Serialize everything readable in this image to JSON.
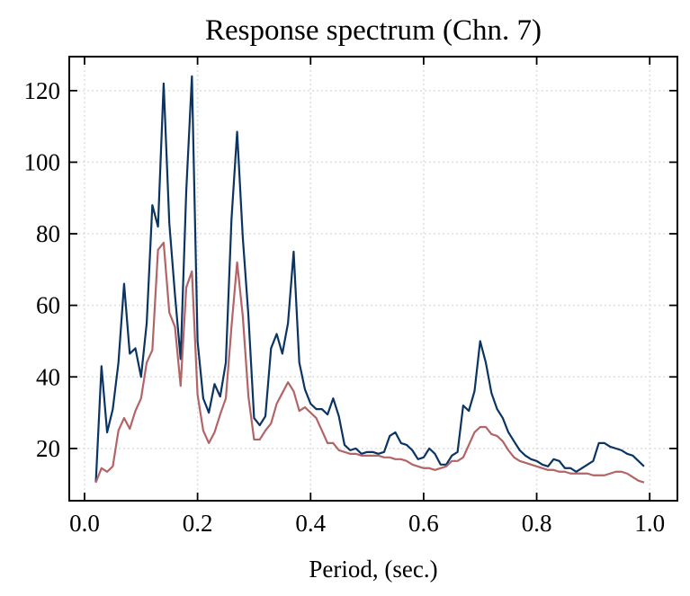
{
  "chart_data": {
    "type": "line",
    "title": "Response spectrum (Chn. 7)",
    "x_label": "Period, (sec.)",
    "x": [
      0.02,
      0.03,
      0.04,
      0.05,
      0.06,
      0.07,
      0.08,
      0.09,
      0.1,
      0.11,
      0.12,
      0.13,
      0.14,
      0.15,
      0.16,
      0.17,
      0.18,
      0.19,
      0.2,
      0.21,
      0.22,
      0.23,
      0.24,
      0.25,
      0.26,
      0.27,
      0.28,
      0.29,
      0.3,
      0.31,
      0.32,
      0.33,
      0.34,
      0.35,
      0.36,
      0.37,
      0.38,
      0.39,
      0.4,
      0.41,
      0.42,
      0.43,
      0.44,
      0.45,
      0.46,
      0.47,
      0.48,
      0.49,
      0.5,
      0.51,
      0.52,
      0.53,
      0.54,
      0.55,
      0.56,
      0.57,
      0.58,
      0.59,
      0.6,
      0.61,
      0.62,
      0.63,
      0.64,
      0.65,
      0.66,
      0.67,
      0.68,
      0.69,
      0.7,
      0.71,
      0.72,
      0.73,
      0.74,
      0.75,
      0.76,
      0.77,
      0.78,
      0.79,
      0.8,
      0.81,
      0.82,
      0.83,
      0.84,
      0.85,
      0.86,
      0.87,
      0.88,
      0.89,
      0.9,
      0.91,
      0.92,
      0.93,
      0.94,
      0.95,
      0.96,
      0.97,
      0.98,
      0.99
    ],
    "series": [
      {
        "color": "#0b3462",
        "values": [
          10.5,
          43,
          24.5,
          31,
          44,
          66,
          46.5,
          48,
          40,
          55,
          88,
          82,
          122,
          83,
          63,
          45,
          92,
          124,
          50,
          34,
          30,
          38,
          34.5,
          44,
          84,
          108.5,
          79,
          57,
          28.5,
          26.5,
          29,
          48,
          52,
          46.5,
          55,
          75,
          44,
          36.5,
          32.5,
          31,
          31,
          29.5,
          34,
          29,
          21,
          19.5,
          20,
          18.5,
          19,
          19,
          18.5,
          19,
          23.5,
          24.5,
          21.5,
          21,
          19.5,
          17,
          17.5,
          20,
          18.5,
          15.5,
          15.5,
          18,
          19,
          32,
          30.5,
          36,
          50,
          44,
          35.5,
          31,
          28.5,
          24.5,
          22,
          19.5,
          18,
          17,
          16.5,
          15.5,
          15,
          17,
          16.5,
          14.5,
          14.5,
          13.5,
          14.5,
          15.5,
          16.5,
          21.5,
          21.5,
          20.5,
          20,
          19.5,
          18.5,
          18,
          16.5,
          15
        ]
      },
      {
        "color": "#b36466",
        "values": [
          10.5,
          14.5,
          13.5,
          15,
          25,
          28.5,
          25.5,
          30.5,
          34,
          44,
          47.5,
          75.5,
          77.5,
          58,
          54,
          37.5,
          65,
          69.5,
          35,
          25,
          21.5,
          24.5,
          29.5,
          34,
          54,
          72,
          57,
          34.5,
          22.5,
          22.5,
          25,
          27,
          32.5,
          35.5,
          38.5,
          36,
          30.5,
          31.5,
          30,
          28.5,
          25,
          21.5,
          21.5,
          19.5,
          19,
          18.5,
          18.5,
          18,
          18,
          18,
          18,
          17.5,
          17.5,
          17,
          17,
          16.5,
          15.5,
          15,
          14.5,
          14.5,
          14,
          14.5,
          15,
          16.5,
          16.5,
          17.5,
          21,
          24.5,
          26,
          26,
          24,
          23.5,
          22,
          19.5,
          17.5,
          16.5,
          16,
          15.5,
          15,
          14.5,
          14,
          14,
          13.5,
          13.5,
          13,
          13,
          13,
          13,
          12.5,
          12.5,
          12.5,
          13,
          13.5,
          13.5,
          13,
          12,
          11,
          10.5
        ]
      }
    ],
    "xlim": [
      -0.027,
      1.049
    ],
    "ylim": [
      5.4,
      129.5
    ],
    "xticks": [
      {
        "value": 0,
        "label": "0.0"
      },
      0.2,
      0.4,
      0.6,
      0.8,
      {
        "value": 1,
        "label": "1.0"
      }
    ],
    "yticks": [
      20,
      40,
      60,
      80,
      100,
      120
    ],
    "grid": true
  }
}
